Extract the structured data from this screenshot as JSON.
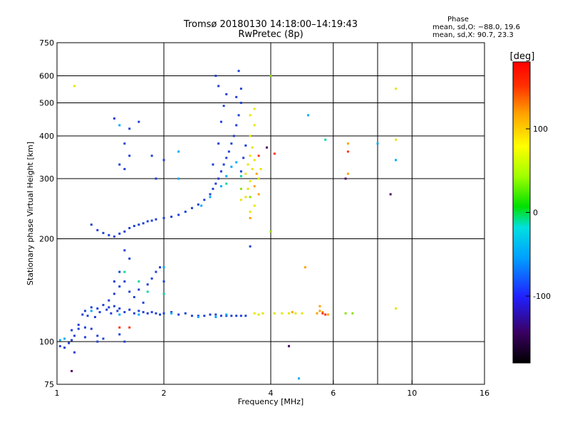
{
  "chart_data": {
    "type": "scatter",
    "title": "Tromsø 20180130 14:18:00–14:19:43",
    "subtitle": "RwPretec (8p)",
    "xlabel": "Frequency [MHz]",
    "ylabel": "Stationary phase Virtual Height [km]",
    "xscale": "log",
    "yscale": "log",
    "xlim": [
      1,
      16
    ],
    "ylim": [
      75,
      750
    ],
    "xticks": [
      1,
      2,
      4,
      6,
      10,
      16
    ],
    "xgrid": [
      2,
      4,
      6,
      8,
      10
    ],
    "yticks": [
      75,
      100,
      200,
      300,
      400,
      500,
      600,
      750
    ],
    "ygrid": [
      100,
      200,
      300,
      400,
      500,
      600
    ],
    "grid": true,
    "stats": {
      "heading": "Phase",
      "line_o": "mean, sd,O: −88.0, 19.6",
      "line_x": "mean, sd,X:  90.7, 23.3"
    },
    "colorbar": {
      "label": "[deg]",
      "range": [
        -180,
        180
      ],
      "ticks": [
        -100,
        0,
        100
      ],
      "colors": [
        "#000000",
        "#3a0060",
        "#2020ff",
        "#00a0ff",
        "#00e0e0",
        "#00e000",
        "#a0ff00",
        "#ffff00",
        "#ffa000",
        "#ff3000",
        "#ff0000"
      ]
    },
    "series": [
      {
        "color": "#1f3fd6",
        "points": [
          [
            1.02,
            97
          ],
          [
            1.05,
            96
          ],
          [
            1.08,
            99
          ],
          [
            1.1,
            101
          ],
          [
            1.12,
            104
          ],
          [
            1.15,
            112
          ],
          [
            1.18,
            120
          ],
          [
            1.2,
            123
          ],
          [
            1.22,
            119
          ],
          [
            1.25,
            126
          ],
          [
            1.28,
            118
          ],
          [
            1.3,
            125
          ],
          [
            1.32,
            122
          ],
          [
            1.35,
            128
          ],
          [
            1.38,
            124
          ],
          [
            1.4,
            126
          ],
          [
            1.42,
            121
          ],
          [
            1.45,
            127
          ],
          [
            1.48,
            123
          ],
          [
            1.5,
            125
          ],
          [
            1.55,
            122
          ],
          [
            1.6,
            124
          ],
          [
            1.65,
            121
          ],
          [
            1.7,
            123
          ],
          [
            1.75,
            122
          ],
          [
            1.8,
            121
          ],
          [
            1.85,
            122
          ],
          [
            1.9,
            121
          ],
          [
            1.95,
            120
          ],
          [
            2.0,
            121
          ],
          [
            2.1,
            122
          ],
          [
            2.2,
            120
          ],
          [
            2.3,
            121
          ],
          [
            2.4,
            119
          ],
          [
            2.5,
            119
          ],
          [
            2.6,
            119
          ],
          [
            2.7,
            120
          ],
          [
            2.8,
            120
          ],
          [
            2.9,
            119
          ],
          [
            3.0,
            119
          ],
          [
            3.1,
            119
          ],
          [
            3.2,
            119
          ],
          [
            3.3,
            119
          ],
          [
            3.4,
            119
          ],
          [
            1.4,
            132
          ],
          [
            1.45,
            138
          ],
          [
            1.5,
            145
          ],
          [
            1.55,
            150
          ],
          [
            1.6,
            140
          ],
          [
            1.65,
            135
          ],
          [
            1.7,
            142
          ],
          [
            1.75,
            130
          ],
          [
            1.8,
            147
          ],
          [
            1.85,
            153
          ],
          [
            1.9,
            160
          ],
          [
            1.95,
            165
          ],
          [
            2.0,
            150
          ],
          [
            1.55,
            185
          ],
          [
            1.6,
            175
          ],
          [
            1.5,
            160
          ],
          [
            1.45,
            150
          ],
          [
            1.25,
            220
          ],
          [
            1.3,
            212
          ],
          [
            1.35,
            208
          ],
          [
            1.4,
            205
          ],
          [
            1.45,
            203
          ],
          [
            1.5,
            207
          ],
          [
            1.55,
            210
          ],
          [
            1.6,
            215
          ],
          [
            1.65,
            218
          ],
          [
            1.7,
            220
          ],
          [
            1.75,
            222
          ],
          [
            1.8,
            225
          ],
          [
            1.85,
            226
          ],
          [
            1.9,
            228
          ],
          [
            2.0,
            230
          ],
          [
            2.1,
            232
          ],
          [
            2.2,
            235
          ],
          [
            2.3,
            240
          ],
          [
            2.4,
            246
          ],
          [
            2.5,
            252
          ],
          [
            2.6,
            260
          ],
          [
            2.7,
            270
          ],
          [
            2.75,
            280
          ],
          [
            2.8,
            290
          ],
          [
            2.85,
            300
          ],
          [
            2.9,
            315
          ],
          [
            2.95,
            330
          ],
          [
            3.0,
            345
          ],
          [
            3.05,
            360
          ],
          [
            3.1,
            380
          ],
          [
            3.15,
            400
          ],
          [
            3.2,
            430
          ],
          [
            3.25,
            460
          ],
          [
            3.3,
            500
          ],
          [
            2.75,
            330
          ],
          [
            2.85,
            380
          ],
          [
            2.9,
            440
          ],
          [
            2.95,
            490
          ],
          [
            3.0,
            530
          ],
          [
            2.85,
            560
          ],
          [
            2.8,
            600
          ],
          [
            3.25,
            620
          ],
          [
            3.3,
            550
          ],
          [
            3.2,
            520
          ],
          [
            1.5,
            330
          ],
          [
            1.55,
            320
          ],
          [
            1.6,
            350
          ],
          [
            1.55,
            380
          ],
          [
            1.85,
            350
          ],
          [
            1.9,
            300
          ],
          [
            2.0,
            340
          ],
          [
            1.7,
            440
          ],
          [
            1.6,
            420
          ],
          [
            1.45,
            450
          ],
          [
            1.12,
            93
          ],
          [
            1.2,
            103
          ],
          [
            1.3,
            100
          ],
          [
            1.5,
            105
          ],
          [
            1.55,
            100
          ],
          [
            4.5,
            97
          ],
          [
            3.5,
            190
          ],
          [
            3.3,
            315
          ],
          [
            3.35,
            345
          ],
          [
            3.4,
            375
          ],
          [
            1.1,
            108
          ],
          [
            1.15,
            109
          ],
          [
            1.2,
            110
          ],
          [
            1.25,
            109
          ],
          [
            1.3,
            104
          ],
          [
            1.35,
            102
          ]
        ]
      },
      {
        "color": "#00aaff",
        "points": [
          [
            1.25,
            123
          ],
          [
            1.5,
            120
          ],
          [
            1.7,
            120
          ],
          [
            2.1,
            121
          ],
          [
            2.5,
            118
          ],
          [
            2.8,
            118
          ],
          [
            3.0,
            120
          ],
          [
            1.02,
            101
          ],
          [
            1.05,
            102
          ],
          [
            2.55,
            250
          ],
          [
            2.7,
            265
          ],
          [
            2.9,
            285
          ],
          [
            3.0,
            305
          ],
          [
            3.1,
            325
          ],
          [
            2.2,
            300
          ],
          [
            2.0,
            165
          ],
          [
            1.5,
            430
          ],
          [
            2.2,
            360
          ],
          [
            5.1,
            460
          ],
          [
            9.0,
            340
          ],
          [
            8.0,
            380
          ],
          [
            4.8,
            78
          ],
          [
            3.2,
            335
          ]
        ]
      },
      {
        "color": "#00d8a0",
        "points": [
          [
            1.8,
            140
          ],
          [
            2.0,
            138
          ],
          [
            1.55,
            160
          ],
          [
            1.7,
            150
          ],
          [
            5.7,
            390
          ],
          [
            3.3,
            305
          ],
          [
            3.0,
            290
          ]
        ]
      },
      {
        "color": "#90e000",
        "points": [
          [
            4.0,
            600
          ],
          [
            4.0,
            210
          ],
          [
            6.5,
            121
          ],
          [
            6.8,
            121
          ],
          [
            3.5,
            265
          ],
          [
            3.3,
            280
          ]
        ]
      },
      {
        "color": "#e6e600",
        "points": [
          [
            3.4,
            310
          ],
          [
            3.45,
            330
          ],
          [
            3.5,
            350
          ],
          [
            3.55,
            370
          ],
          [
            3.5,
            400
          ],
          [
            3.6,
            430
          ],
          [
            3.6,
            480
          ],
          [
            3.5,
            460
          ],
          [
            3.45,
            280
          ],
          [
            3.5,
            295
          ],
          [
            3.55,
            320
          ],
          [
            3.6,
            340
          ],
          [
            3.7,
            300
          ],
          [
            3.75,
            320
          ],
          [
            3.4,
            265
          ],
          [
            3.3,
            260
          ],
          [
            3.6,
            250
          ],
          [
            3.5,
            240
          ],
          [
            3.6,
            121
          ],
          [
            3.7,
            120
          ],
          [
            3.8,
            121
          ],
          [
            4.1,
            121
          ],
          [
            4.3,
            121
          ],
          [
            4.5,
            121
          ],
          [
            4.7,
            121
          ],
          [
            4.9,
            121
          ],
          [
            1.12,
            560
          ],
          [
            9.0,
            550
          ],
          [
            9.0,
            125
          ],
          [
            9.0,
            390
          ]
        ]
      },
      {
        "color": "#ffa000",
        "points": [
          [
            3.6,
            285
          ],
          [
            3.7,
            270
          ],
          [
            3.65,
            310
          ],
          [
            3.5,
            230
          ],
          [
            5.4,
            121
          ],
          [
            5.5,
            123
          ],
          [
            5.6,
            122
          ],
          [
            5.8,
            120
          ],
          [
            4.6,
            122
          ],
          [
            5.5,
            127
          ],
          [
            6.6,
            380
          ],
          [
            6.6,
            310
          ],
          [
            5.0,
            165
          ]
        ]
      },
      {
        "color": "#ff3010",
        "points": [
          [
            5.6,
            121
          ],
          [
            5.7,
            120
          ],
          [
            3.7,
            350
          ],
          [
            4.1,
            355
          ],
          [
            1.6,
            110
          ],
          [
            6.6,
            360
          ],
          [
            1.5,
            110
          ]
        ]
      },
      {
        "color": "#550066",
        "points": [
          [
            3.9,
            370
          ],
          [
            1.1,
            82
          ],
          [
            4.5,
            97
          ],
          [
            8.7,
            270
          ],
          [
            6.5,
            300
          ]
        ]
      }
    ]
  }
}
